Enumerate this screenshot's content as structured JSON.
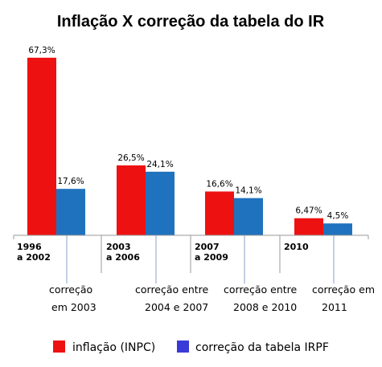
{
  "colors": {
    "inflation": "#ee1111",
    "correction": "#1f72be",
    "legend_correction_swatch": "#3a3ad8",
    "axis": "#9a9a9a",
    "connector": "#8a9fc8"
  },
  "chart_data": {
    "type": "bar",
    "title": "Inflação X correção da tabela do IR",
    "categories": [
      [
        "1996",
        "a 2002"
      ],
      [
        "2003",
        "a 2006"
      ],
      [
        "2007",
        "a 2009"
      ],
      [
        "2010"
      ]
    ],
    "series": [
      {
        "name": "inflação (INPC)",
        "values": [
          67.3,
          26.5,
          16.6,
          6.47
        ],
        "labels": [
          "67,3%",
          "26,5%",
          "16,6%",
          "6,47%"
        ]
      },
      {
        "name": "correção da tabela IRPF",
        "values": [
          17.6,
          24.1,
          14.1,
          4.5
        ],
        "labels": [
          "17,6%",
          "24,1%",
          "14,1%",
          "4,5%"
        ]
      }
    ],
    "correction_notes": [
      [
        "correção",
        "em 2003"
      ],
      [
        "correção entre",
        "2004 e 2007"
      ],
      [
        "correção entre",
        "2008 e 2010"
      ],
      [
        "correção em",
        "2011"
      ]
    ],
    "ylim": [
      0,
      70
    ],
    "grid": false,
    "legend_position": "bottom",
    "legend": [
      "inflação (INPC)",
      "correção da tabela IRPF"
    ]
  }
}
